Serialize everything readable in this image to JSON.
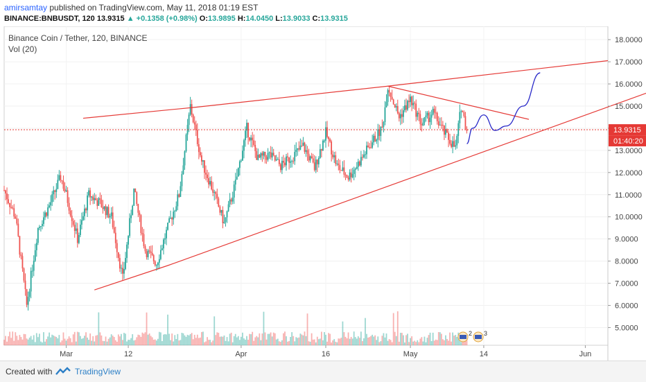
{
  "header": {
    "author": "amirsamtay",
    "published": "published on TradingView.com, May 11, 2018 01:19 EST",
    "symbol": "BINANCE:BNBUSDT, 120",
    "last": "13.9315",
    "change_arrow": "▲",
    "change": "+0.1358 (+0.98%)",
    "o_label": "O:",
    "o": "13.9895",
    "h_label": "H:",
    "h": "14.0450",
    "l_label": "L:",
    "l": "13.9033",
    "c_label": "C:",
    "c": "13.9315"
  },
  "chart_title": "Binance Coin / Tether, 120, BINANCE",
  "volume_label": "Vol (20)",
  "price_tag": "13.9315",
  "time_tag": "01:40:20",
  "footer": {
    "created_with": "Created with",
    "brand": "TradingView"
  },
  "event_badges": [
    "2",
    "3"
  ],
  "colors": {
    "up": "#26a69a",
    "down": "#ef5350",
    "trendline": "#e53935",
    "projection": "#2929c8",
    "price_line": "#e53935"
  },
  "chart_data": {
    "type": "candlestick",
    "title": "Binance Coin / Tether, 120, BINANCE",
    "x_axis_labels": [
      "Mar",
      "12",
      "Apr",
      "16",
      "May",
      "14",
      "Jun"
    ],
    "y_axis_labels": [
      "18.0000",
      "17.0000",
      "16.0000",
      "15.0000",
      "14.0000",
      "13.0000",
      "12.0000",
      "11.0000",
      "10.0000",
      "9.0000",
      "8.0000",
      "7.0000",
      "6.0000",
      "5.0000"
    ],
    "ylim": [
      4.2,
      18.6
    ],
    "x_date_range": [
      "2018-02-18",
      "2018-06-05"
    ],
    "last_price": 13.9315,
    "price_path_approx": [
      [
        "2018-02-18",
        11.2
      ],
      [
        "2018-02-20",
        10.0
      ],
      [
        "2018-02-22",
        6.0
      ],
      [
        "2018-02-24",
        9.5
      ],
      [
        "2018-02-26",
        10.5
      ],
      [
        "2018-02-28",
        11.8
      ],
      [
        "2018-03-01",
        11.0
      ],
      [
        "2018-03-03",
        9.0
      ],
      [
        "2018-03-05",
        11.0
      ],
      [
        "2018-03-07",
        10.6
      ],
      [
        "2018-03-09",
        10.0
      ],
      [
        "2018-03-11",
        7.2
      ],
      [
        "2018-03-13",
        11.2
      ],
      [
        "2018-03-15",
        8.5
      ],
      [
        "2018-03-17",
        7.9
      ],
      [
        "2018-03-19",
        9.5
      ],
      [
        "2018-03-21",
        11.0
      ],
      [
        "2018-03-23",
        15.0
      ],
      [
        "2018-03-25",
        12.5
      ],
      [
        "2018-03-27",
        11.2
      ],
      [
        "2018-03-29",
        9.7
      ],
      [
        "2018-03-31",
        11.5
      ],
      [
        "2018-04-02",
        14.0
      ],
      [
        "2018-04-04",
        12.6
      ],
      [
        "2018-04-06",
        12.8
      ],
      [
        "2018-04-08",
        12.3
      ],
      [
        "2018-04-10",
        12.7
      ],
      [
        "2018-04-12",
        13.2
      ],
      [
        "2018-04-14",
        12.2
      ],
      [
        "2018-04-16",
        13.8
      ],
      [
        "2018-04-18",
        12.3
      ],
      [
        "2018-04-20",
        11.8
      ],
      [
        "2018-04-22",
        12.5
      ],
      [
        "2018-04-24",
        13.3
      ],
      [
        "2018-04-26",
        14.0
      ],
      [
        "2018-04-27",
        15.9
      ],
      [
        "2018-04-29",
        14.5
      ],
      [
        "2018-05-01",
        15.3
      ],
      [
        "2018-05-03",
        14.2
      ],
      [
        "2018-05-05",
        14.7
      ],
      [
        "2018-05-07",
        13.8
      ],
      [
        "2018-05-09",
        13.1
      ],
      [
        "2018-05-10",
        15.0
      ],
      [
        "2018-05-11",
        13.93
      ]
    ],
    "trendlines": [
      {
        "name": "upper resistance",
        "points": [
          [
            "2018-03-04",
            14.45
          ],
          [
            "2018-03-24",
            14.95
          ],
          [
            "2018-04-27",
            15.9
          ],
          [
            "2018-06-05",
            17.05
          ]
        ]
      },
      {
        "name": "lower support",
        "points": [
          [
            "2018-03-06",
            6.7
          ],
          [
            "2018-03-19",
            7.8
          ],
          [
            "2018-06-12",
            15.6
          ]
        ]
      },
      {
        "name": "descending resistance",
        "points": [
          [
            "2018-04-27",
            15.9
          ],
          [
            "2018-05-22",
            14.4
          ]
        ]
      }
    ],
    "projection": [
      [
        "2018-05-11",
        13.3
      ],
      [
        "2018-05-12",
        14.0
      ],
      [
        "2018-05-14",
        14.6
      ],
      [
        "2018-05-16",
        13.9
      ],
      [
        "2018-05-18",
        14.1
      ],
      [
        "2018-05-21",
        15.0
      ],
      [
        "2018-05-24",
        16.5
      ]
    ]
  }
}
